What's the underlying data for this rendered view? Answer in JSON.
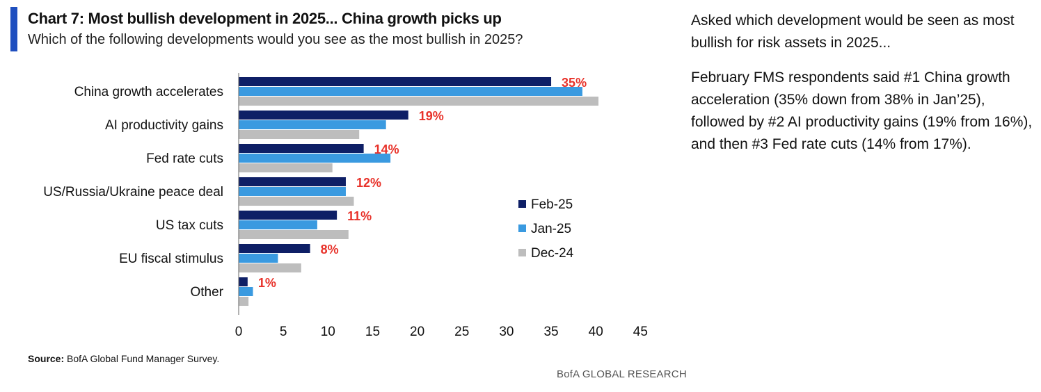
{
  "title": "Chart 7: Most bullish development in 2025... China growth picks up",
  "subtitle": "Which of the following developments would you see as the most bullish in 2025?",
  "commentary": {
    "paragraph1": "Asked which development would be seen as most bullish for risk assets in 2025...",
    "paragraph2": "February FMS respondents said #1 China growth acceleration (35% down from 38% in Jan’25), followed by #2 AI productivity gains (19% from 16%), and then #3 Fed rate cuts (14% from 17%)."
  },
  "source": {
    "label": "Source:",
    "text": "BofA Global Fund Manager Survey."
  },
  "brand": "BofA GLOBAL RESEARCH",
  "colors": {
    "feb25": "#0e1f66",
    "jan25": "#3a9ae0",
    "dec24": "#bdbdbd",
    "data_label": "#e8322a",
    "accent": "#1f4fbf"
  },
  "chart_data": {
    "type": "bar",
    "orientation": "horizontal",
    "categories": [
      "China growth accelerates",
      "AI productivity gains",
      "Fed rate cuts",
      "US/Russia/Ukraine peace deal",
      "US tax cuts",
      "EU fiscal stimulus",
      "Other"
    ],
    "series": [
      {
        "name": "Feb-25",
        "values": [
          35,
          19,
          14,
          12,
          11,
          8,
          1
        ]
      },
      {
        "name": "Jan-25",
        "values": [
          38.5,
          16.5,
          17,
          12,
          8.8,
          4.4,
          1.6
        ]
      },
      {
        "name": "Dec-24",
        "values": [
          40.3,
          13.5,
          10.5,
          12.9,
          12.3,
          7,
          1.1
        ]
      }
    ],
    "data_labels": [
      "35%",
      "19%",
      "14%",
      "12%",
      "11%",
      "8%",
      "1%"
    ],
    "x_ticks": [
      0,
      5,
      10,
      15,
      20,
      25,
      30,
      35,
      40,
      45
    ],
    "xlim": [
      0,
      45
    ],
    "grid": false,
    "legend_position": "right"
  }
}
